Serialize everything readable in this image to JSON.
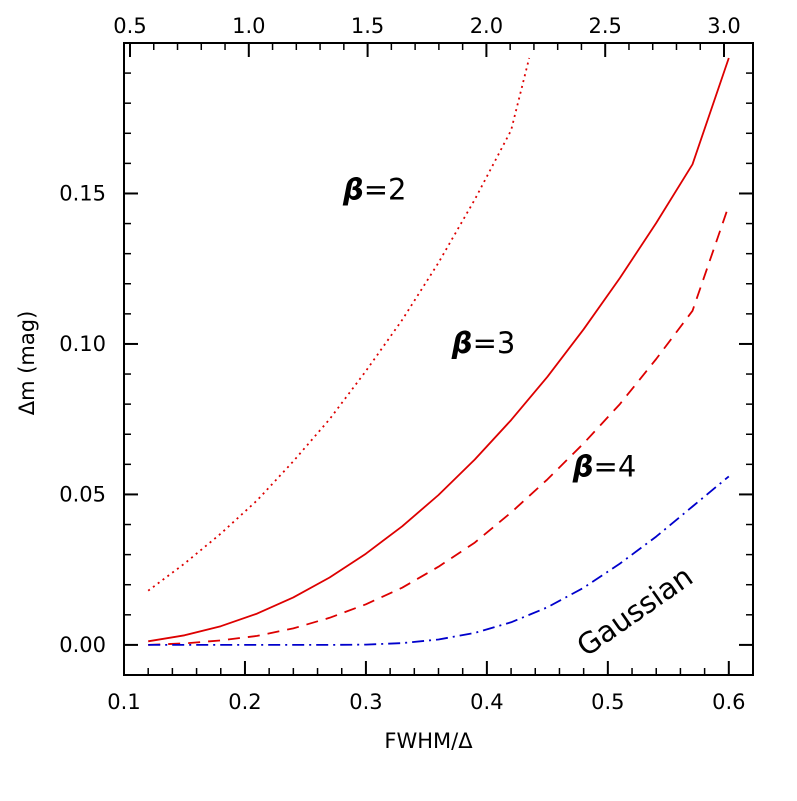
{
  "chart_data": {
    "type": "line",
    "title": "",
    "xlabel": "FWHM/Δ",
    "ylabel": "Δm (mag)",
    "xlim": [
      0.1,
      0.62
    ],
    "ylim": [
      -0.01,
      0.2
    ],
    "x_ticks": [
      0.1,
      0.2,
      0.3,
      0.4,
      0.5,
      0.6
    ],
    "x_tick_labels": [
      "0.1",
      "0.2",
      "0.3",
      "0.4",
      "0.5",
      "0.6"
    ],
    "y_ticks": [
      0.0,
      0.05,
      0.1,
      0.15
    ],
    "y_tick_labels": [
      "0.00",
      "0.05",
      "0.10",
      "0.15"
    ],
    "top_axis": {
      "ticks": [
        0.5,
        1.0,
        1.5,
        2.0,
        2.5,
        3.0
      ],
      "tick_labels": [
        "0.5",
        "1.0",
        "1.5",
        "2.0",
        "2.5",
        "3.0"
      ]
    },
    "grid": false,
    "series": [
      {
        "name": "β=2",
        "label_beta": "β",
        "label_rest": "=2",
        "style": "dotted",
        "color": "#dd0000",
        "x": [
          0.12,
          0.15,
          0.18,
          0.21,
          0.24,
          0.27,
          0.3,
          0.33,
          0.36,
          0.39,
          0.42,
          0.435
        ],
        "y": [
          0.018,
          0.027,
          0.037,
          0.048,
          0.061,
          0.075,
          0.091,
          0.108,
          0.127,
          0.148,
          0.171,
          0.195
        ]
      },
      {
        "name": "β=3",
        "label_beta": "β",
        "label_rest": "=3",
        "style": "solid",
        "color": "#dd0000",
        "x": [
          0.12,
          0.15,
          0.18,
          0.21,
          0.24,
          0.27,
          0.3,
          0.33,
          0.36,
          0.39,
          0.42,
          0.45,
          0.48,
          0.51,
          0.54,
          0.57,
          0.6
        ],
        "y": [
          0.0012,
          0.0032,
          0.0062,
          0.0104,
          0.0158,
          0.0224,
          0.0303,
          0.0394,
          0.0498,
          0.0616,
          0.0747,
          0.0891,
          0.1049,
          0.1219,
          0.1402,
          0.1597,
          0.195
        ]
      },
      {
        "name": "β=4",
        "label_beta": "β",
        "label_rest": "=4",
        "style": "dashed",
        "color": "#dd0000",
        "x": [
          0.12,
          0.15,
          0.18,
          0.21,
          0.24,
          0.27,
          0.3,
          0.33,
          0.36,
          0.39,
          0.42,
          0.45,
          0.48,
          0.51,
          0.54,
          0.57,
          0.6
        ],
        "y": [
          0.0,
          0.0005,
          0.0015,
          0.003,
          0.0055,
          0.009,
          0.0135,
          0.019,
          0.026,
          0.034,
          0.044,
          0.055,
          0.067,
          0.08,
          0.095,
          0.111,
          0.146
        ]
      },
      {
        "name": "Gaussian",
        "label": "Gaussian",
        "style": "dashdot",
        "color": "#0000cc",
        "x": [
          0.12,
          0.15,
          0.18,
          0.21,
          0.24,
          0.27,
          0.3,
          0.33,
          0.36,
          0.39,
          0.42,
          0.45,
          0.48,
          0.51,
          0.54,
          0.57,
          0.6
        ],
        "y": [
          0.0,
          0.0,
          0.0,
          0.0,
          0.0,
          0.0,
          0.0001,
          0.0006,
          0.0018,
          0.004,
          0.0075,
          0.0125,
          0.019,
          0.027,
          0.036,
          0.046,
          0.056
        ]
      }
    ]
  }
}
